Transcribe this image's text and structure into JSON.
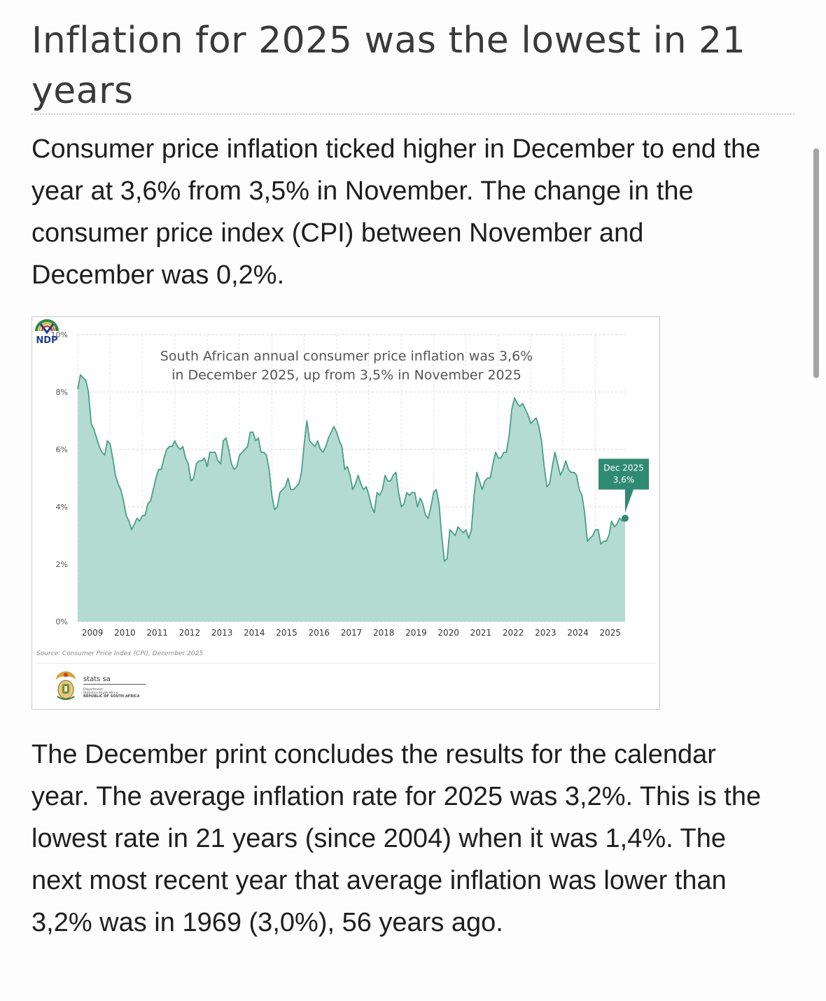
{
  "article": {
    "headline": "Inflation for 2025 was the lowest in 21 years",
    "intro": "Consumer price inflation ticked higher in December to end the year at 3,6% from 3,5% in November. The change in the consumer price index (CPI) between November and December was 0,2%.",
    "body": "The December print concludes the results for the calendar year. The average inflation rate for 2025 was 3,2%. This is the lowest rate in 21 years (since 2004) when it was 1,4%. The next most recent year that average inflation was lower than 3,2% was in 1969 (3,0%), 56 years ago."
  },
  "figure": {
    "source": "Source: Consumer Price Index (CPI), December 2025",
    "publisher_logo": {
      "name": "stats sa",
      "line1": "Department:",
      "line2": "Statistics South Africa",
      "line3": "REPUBLIC OF SOUTH AFRICA"
    },
    "partner_logo": {
      "text": "NDP",
      "small": "2030"
    }
  },
  "chart_data": {
    "type": "area",
    "title": "South African annual consumer price inflation was 3,6%",
    "subtitle": "in December 2025, up from 3,5% in November 2025",
    "xlabel": "",
    "ylabel": "",
    "ylim": [
      0,
      10
    ],
    "y_ticks": [
      "0%",
      "2%",
      "4%",
      "6%",
      "8%",
      "10%"
    ],
    "x_ticks": [
      "2009",
      "2010",
      "2011",
      "2012",
      "2013",
      "2014",
      "2015",
      "2016",
      "2017",
      "2018",
      "2019",
      "2020",
      "2021",
      "2022",
      "2023",
      "2024",
      "2025"
    ],
    "grid": true,
    "color": "#4a9e88",
    "fill": "#b3dbd2",
    "series": [
      {
        "x": [
          "2009-01",
          "2009-02",
          "2009-03",
          "2009-04",
          "2009-05",
          "2009-06",
          "2009-07",
          "2009-08",
          "2009-09",
          "2009-10",
          "2009-11",
          "2009-12",
          "2010-01",
          "2010-02",
          "2010-03",
          "2010-04",
          "2010-05",
          "2010-06",
          "2010-07",
          "2010-08",
          "2010-09",
          "2010-10",
          "2010-11",
          "2010-12",
          "2011-01",
          "2011-02",
          "2011-03",
          "2011-04",
          "2011-05",
          "2011-06",
          "2011-07",
          "2011-08",
          "2011-09",
          "2011-10",
          "2011-11",
          "2011-12",
          "2012-01",
          "2012-02",
          "2012-03",
          "2012-04",
          "2012-05",
          "2012-06",
          "2012-07",
          "2012-08",
          "2012-09",
          "2012-10",
          "2012-11",
          "2012-12",
          "2013-01",
          "2013-02",
          "2013-03",
          "2013-04",
          "2013-05",
          "2013-06",
          "2013-07",
          "2013-08",
          "2013-09",
          "2013-10",
          "2013-11",
          "2013-12",
          "2014-01",
          "2014-02",
          "2014-03",
          "2014-04",
          "2014-05",
          "2014-06",
          "2014-07",
          "2014-08",
          "2014-09",
          "2014-10",
          "2014-11",
          "2014-12",
          "2015-01",
          "2015-02",
          "2015-03",
          "2015-04",
          "2015-05",
          "2015-06",
          "2015-07",
          "2015-08",
          "2015-09",
          "2015-10",
          "2015-11",
          "2015-12",
          "2016-01",
          "2016-02",
          "2016-03",
          "2016-04",
          "2016-05",
          "2016-06",
          "2016-07",
          "2016-08",
          "2016-09",
          "2016-10",
          "2016-11",
          "2016-12",
          "2017-01",
          "2017-02",
          "2017-03",
          "2017-04",
          "2017-05",
          "2017-06",
          "2017-07",
          "2017-08",
          "2017-09",
          "2017-10",
          "2017-11",
          "2017-12",
          "2018-01",
          "2018-02",
          "2018-03",
          "2018-04",
          "2018-05",
          "2018-06",
          "2018-07",
          "2018-08",
          "2018-09",
          "2018-10",
          "2018-11",
          "2018-12",
          "2019-01",
          "2019-02",
          "2019-03",
          "2019-04",
          "2019-05",
          "2019-06",
          "2019-07",
          "2019-08",
          "2019-09",
          "2019-10",
          "2019-11",
          "2019-12",
          "2020-01",
          "2020-02",
          "2020-03",
          "2020-04",
          "2020-05",
          "2020-06",
          "2020-07",
          "2020-08",
          "2020-09",
          "2020-10",
          "2020-11",
          "2020-12",
          "2021-01",
          "2021-02",
          "2021-03",
          "2021-04",
          "2021-05",
          "2021-06",
          "2021-07",
          "2021-08",
          "2021-09",
          "2021-10",
          "2021-11",
          "2021-12",
          "2022-01",
          "2022-02",
          "2022-03",
          "2022-04",
          "2022-05",
          "2022-06",
          "2022-07",
          "2022-08",
          "2022-09",
          "2022-10",
          "2022-11",
          "2022-12",
          "2023-01",
          "2023-02",
          "2023-03",
          "2023-04",
          "2023-05",
          "2023-06",
          "2023-07",
          "2023-08",
          "2023-09",
          "2023-10",
          "2023-11",
          "2023-12",
          "2024-01",
          "2024-02",
          "2024-03",
          "2024-04",
          "2024-05",
          "2024-06",
          "2024-07",
          "2024-08",
          "2024-09",
          "2024-10",
          "2024-11",
          "2024-12",
          "2025-01",
          "2025-02",
          "2025-03",
          "2025-04",
          "2025-05",
          "2025-06",
          "2025-07",
          "2025-08",
          "2025-09",
          "2025-10",
          "2025-11",
          "2025-12"
        ],
        "values": [
          8.1,
          8.6,
          8.5,
          8.4,
          8.0,
          6.9,
          6.7,
          6.4,
          6.1,
          5.9,
          5.8,
          6.3,
          6.2,
          5.7,
          5.1,
          4.8,
          4.6,
          4.2,
          3.7,
          3.5,
          3.2,
          3.4,
          3.6,
          3.5,
          3.7,
          3.7,
          4.1,
          4.2,
          4.6,
          5.0,
          5.3,
          5.3,
          5.7,
          6.0,
          6.1,
          6.1,
          6.3,
          6.1,
          6.0,
          6.1,
          5.7,
          5.5,
          4.9,
          5.0,
          5.5,
          5.6,
          5.6,
          5.7,
          5.4,
          5.9,
          5.9,
          5.9,
          5.6,
          5.5,
          6.3,
          6.4,
          6.0,
          5.5,
          5.3,
          5.4,
          5.8,
          5.9,
          6.0,
          6.1,
          6.6,
          6.6,
          6.3,
          6.4,
          5.9,
          5.9,
          5.8,
          5.3,
          4.4,
          3.9,
          4.0,
          4.5,
          4.6,
          4.7,
          5.0,
          4.6,
          4.6,
          4.7,
          4.8,
          5.2,
          6.2,
          7.0,
          6.3,
          6.2,
          6.1,
          6.3,
          6.0,
          5.9,
          6.1,
          6.4,
          6.6,
          6.8,
          6.6,
          6.3,
          6.1,
          5.3,
          5.4,
          5.1,
          4.6,
          4.8,
          5.1,
          4.8,
          4.6,
          4.7,
          4.4,
          4.0,
          3.8,
          4.5,
          4.4,
          4.6,
          5.1,
          4.9,
          4.9,
          5.1,
          5.2,
          4.5,
          4.0,
          4.1,
          4.5,
          4.4,
          4.5,
          4.5,
          4.0,
          4.3,
          4.1,
          3.7,
          3.6,
          4.0,
          4.5,
          4.6,
          4.1,
          3.0,
          2.1,
          2.2,
          3.2,
          3.1,
          3.0,
          3.3,
          3.2,
          3.1,
          3.2,
          2.9,
          3.2,
          4.4,
          5.2,
          4.9,
          4.6,
          4.9,
          5.0,
          5.0,
          5.5,
          5.9,
          5.7,
          5.7,
          5.9,
          5.9,
          6.5,
          7.4,
          7.8,
          7.6,
          7.5,
          7.6,
          7.4,
          7.2,
          6.9,
          7.0,
          7.1,
          6.8,
          6.3,
          5.4,
          4.7,
          4.8,
          5.4,
          5.9,
          5.5,
          5.1,
          5.3,
          5.6,
          5.3,
          5.2,
          5.2,
          5.1,
          4.6,
          4.4,
          3.8,
          2.8,
          2.9,
          3.0,
          3.2,
          3.2,
          2.7,
          2.8,
          2.8,
          3.0,
          3.5,
          3.3,
          3.4,
          3.6,
          3.5,
          3.6
        ]
      }
    ],
    "annotation": {
      "label_line1": "Dec 2025",
      "label_line2": "3,6%",
      "x": "2025-12",
      "y": 3.6
    }
  }
}
